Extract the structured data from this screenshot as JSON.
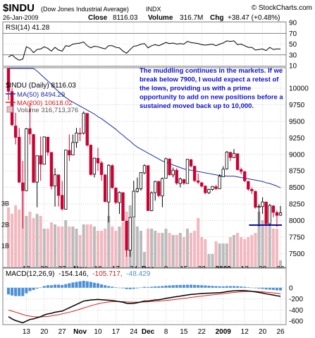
{
  "header": {
    "symbol": "$INDU",
    "name": "(Dow Jones Industrial Average)",
    "exchange": "INDX",
    "date": "26-Jan-2009",
    "close_label": "Close",
    "close": "8116.03",
    "volume_label": "Volume",
    "volume": "316.7M",
    "chg_label": "Chg",
    "chg": "+38.47 (+0.48%)",
    "watermark": "© StockCharts.com"
  },
  "colors": {
    "up": "#ffffff",
    "down": "#cc0033",
    "ma50": "#1f2fa0",
    "ma200": "#d62020",
    "volume": "#f2b8c0",
    "volume_up": "#bbbbbb",
    "macd_hist": "#4a90d9",
    "annotation_text": "#1111cc",
    "support_line": "#0a0aa8",
    "grid": "#b8b8b8"
  },
  "chart_data": [
    {
      "panel": "rsi",
      "type": "line",
      "label": "RSI(14) 41.28",
      "ylim": [
        10,
        90
      ],
      "y_ticks": [
        "90",
        "70",
        "50",
        "30",
        "10"
      ],
      "reference_lines": [
        70,
        30
      ],
      "dates": [
        "2008-10-06",
        "2008-10-07",
        "2008-10-08",
        "2008-10-09",
        "2008-10-10",
        "2008-10-13",
        "2008-10-14",
        "2008-10-15",
        "2008-10-16",
        "2008-10-17",
        "2008-10-20",
        "2008-10-21",
        "2008-10-22",
        "2008-10-23",
        "2008-10-24",
        "2008-10-27",
        "2008-10-28",
        "2008-10-29",
        "2008-10-30",
        "2008-10-31",
        "2008-11-03",
        "2008-11-04",
        "2008-11-05",
        "2008-11-06",
        "2008-11-07",
        "2008-11-10",
        "2008-11-11",
        "2008-11-12",
        "2008-11-13",
        "2008-11-14",
        "2008-11-17",
        "2008-11-18",
        "2008-11-19",
        "2008-11-20",
        "2008-11-21",
        "2008-11-24",
        "2008-11-25",
        "2008-11-26",
        "2008-11-28",
        "2008-12-01",
        "2008-12-02",
        "2008-12-03",
        "2008-12-04",
        "2008-12-05",
        "2008-12-08",
        "2008-12-09",
        "2008-12-10",
        "2008-12-11",
        "2008-12-12",
        "2008-12-15",
        "2008-12-16",
        "2008-12-17",
        "2008-12-18",
        "2008-12-19",
        "2008-12-22",
        "2008-12-23",
        "2008-12-24",
        "2008-12-26",
        "2008-12-29",
        "2008-12-30",
        "2008-12-31",
        "2009-01-02",
        "2009-01-05",
        "2009-01-06",
        "2009-01-07",
        "2009-01-08",
        "2009-01-09",
        "2009-01-12",
        "2009-01-13",
        "2009-01-14",
        "2009-01-15",
        "2009-01-16",
        "2009-01-20",
        "2009-01-21",
        "2009-01-22",
        "2009-01-23",
        "2009-01-26"
      ],
      "values": [
        26,
        30,
        24,
        20,
        22,
        45,
        42,
        34,
        40,
        41,
        45,
        42,
        37,
        44,
        39,
        37,
        47,
        46,
        50,
        51,
        52,
        54,
        47,
        43,
        46,
        45,
        43,
        41,
        47,
        47,
        44,
        43,
        37,
        33,
        40,
        46,
        47,
        50,
        51,
        43,
        47,
        49,
        47,
        50,
        53,
        51,
        52,
        50,
        51,
        50,
        55,
        53,
        52,
        51,
        49,
        48,
        49,
        50,
        47,
        50,
        52,
        56,
        55,
        56,
        49,
        50,
        47,
        44,
        44,
        39,
        40,
        41,
        38,
        44,
        40,
        41,
        41
      ]
    },
    {
      "panel": "price",
      "type": "candlestick",
      "title": "$INDU (Daily) 8116.03",
      "ylim": [
        7300,
        10300
      ],
      "y_ticks": [
        "10000",
        "9750",
        "9500",
        "9250",
        "9000",
        "8750",
        "8500",
        "8250",
        "8000",
        "7750",
        "7500"
      ],
      "dates": [
        "2008-10-06",
        "2008-10-07",
        "2008-10-08",
        "2008-10-09",
        "2008-10-10",
        "2008-10-13",
        "2008-10-14",
        "2008-10-15",
        "2008-10-16",
        "2008-10-17",
        "2008-10-20",
        "2008-10-21",
        "2008-10-22",
        "2008-10-23",
        "2008-10-24",
        "2008-10-27",
        "2008-10-28",
        "2008-10-29",
        "2008-10-30",
        "2008-10-31",
        "2008-11-03",
        "2008-11-04",
        "2008-11-05",
        "2008-11-06",
        "2008-11-07",
        "2008-11-10",
        "2008-11-11",
        "2008-11-12",
        "2008-11-13",
        "2008-11-14",
        "2008-11-17",
        "2008-11-18",
        "2008-11-19",
        "2008-11-20",
        "2008-11-21",
        "2008-11-24",
        "2008-11-25",
        "2008-11-26",
        "2008-11-28",
        "2008-12-01",
        "2008-12-02",
        "2008-12-03",
        "2008-12-04",
        "2008-12-05",
        "2008-12-08",
        "2008-12-09",
        "2008-12-10",
        "2008-12-11",
        "2008-12-12",
        "2008-12-15",
        "2008-12-16",
        "2008-12-17",
        "2008-12-18",
        "2008-12-19",
        "2008-12-22",
        "2008-12-23",
        "2008-12-24",
        "2008-12-26",
        "2008-12-29",
        "2008-12-30",
        "2008-12-31",
        "2009-01-02",
        "2009-01-05",
        "2009-01-06",
        "2009-01-07",
        "2009-01-08",
        "2009-01-09",
        "2009-01-12",
        "2009-01-13",
        "2009-01-14",
        "2009-01-15",
        "2009-01-16",
        "2009-01-20",
        "2009-01-21",
        "2009-01-22",
        "2009-01-23",
        "2009-01-26"
      ],
      "ohlc": [
        [
          10300,
          10350,
          9820,
          9955
        ],
        [
          9950,
          10000,
          9430,
          9447
        ],
        [
          9430,
          9630,
          9150,
          9258
        ],
        [
          9260,
          9400,
          8570,
          8579
        ],
        [
          8570,
          8900,
          7880,
          8451
        ],
        [
          8450,
          9400,
          8450,
          9387
        ],
        [
          9390,
          9790,
          9150,
          9310
        ],
        [
          9300,
          9310,
          8570,
          8577
        ],
        [
          8580,
          8980,
          8200,
          8979
        ],
        [
          8980,
          9270,
          8600,
          8852
        ],
        [
          8850,
          9270,
          8850,
          9265
        ],
        [
          9260,
          9265,
          8980,
          9033
        ],
        [
          9030,
          9030,
          8470,
          8519
        ],
        [
          8520,
          8790,
          8210,
          8691
        ],
        [
          8690,
          8690,
          8210,
          8378
        ],
        [
          8380,
          8600,
          8150,
          8175
        ],
        [
          8170,
          9070,
          8170,
          9065
        ],
        [
          9060,
          9300,
          8900,
          8990
        ],
        [
          8990,
          9300,
          8990,
          9180
        ],
        [
          9180,
          9400,
          9100,
          9325
        ],
        [
          9320,
          9400,
          9200,
          9319
        ],
        [
          9320,
          9650,
          9300,
          9625
        ],
        [
          9620,
          9620,
          9120,
          9139
        ],
        [
          9140,
          9150,
          8680,
          8695
        ],
        [
          8700,
          8950,
          8650,
          8943
        ],
        [
          8940,
          9100,
          8750,
          8870
        ],
        [
          8870,
          8900,
          8600,
          8694
        ],
        [
          8690,
          8700,
          8280,
          8283
        ],
        [
          8280,
          8850,
          7970,
          8835
        ],
        [
          8830,
          8850,
          8480,
          8497
        ],
        [
          8490,
          8500,
          8250,
          8273
        ],
        [
          8270,
          8440,
          8100,
          8424
        ],
        [
          8420,
          8430,
          7990,
          7997
        ],
        [
          7990,
          8000,
          7450,
          7552
        ],
        [
          7550,
          8050,
          7450,
          8046
        ],
        [
          8050,
          8600,
          8050,
          8443
        ],
        [
          8440,
          8650,
          8420,
          8480
        ],
        [
          8480,
          8730,
          8450,
          8726
        ],
        [
          8720,
          8850,
          8700,
          8829
        ],
        [
          8830,
          8830,
          8150,
          8149
        ],
        [
          8150,
          8440,
          8140,
          8419
        ],
        [
          8420,
          8600,
          8300,
          8591
        ],
        [
          8590,
          8600,
          8350,
          8376
        ],
        [
          8370,
          8650,
          8200,
          8635
        ],
        [
          8640,
          8950,
          8640,
          8934
        ],
        [
          8930,
          8940,
          8680,
          8691
        ],
        [
          8690,
          8800,
          8650,
          8761
        ],
        [
          8760,
          8790,
          8540,
          8565
        ],
        [
          8560,
          8650,
          8500,
          8629
        ],
        [
          8620,
          8630,
          8540,
          8564
        ],
        [
          8560,
          8930,
          8560,
          8925
        ],
        [
          8920,
          8930,
          8800,
          8824
        ],
        [
          8820,
          8830,
          8580,
          8604
        ],
        [
          8600,
          8710,
          8550,
          8579
        ],
        [
          8570,
          8580,
          8500,
          8519
        ],
        [
          8520,
          8530,
          8400,
          8419
        ],
        [
          8420,
          8480,
          8400,
          8468
        ],
        [
          8470,
          8520,
          8450,
          8515
        ],
        [
          8510,
          8540,
          8460,
          8483
        ],
        [
          8480,
          8700,
          8480,
          8668
        ],
        [
          8660,
          8820,
          8660,
          8776
        ],
        [
          8780,
          9050,
          8770,
          9035
        ],
        [
          9030,
          9040,
          8900,
          8953
        ],
        [
          8950,
          9080,
          8950,
          9016
        ],
        [
          9010,
          9010,
          8760,
          8769
        ],
        [
          8770,
          8800,
          8700,
          8742
        ],
        [
          8740,
          8740,
          8580,
          8600
        ],
        [
          8590,
          8600,
          8450,
          8474
        ],
        [
          8470,
          8500,
          8400,
          8448
        ],
        [
          8440,
          8450,
          8180,
          8200
        ],
        [
          8200,
          8250,
          7910,
          8212
        ],
        [
          8210,
          8350,
          8100,
          8281
        ],
        [
          8280,
          8280,
          7940,
          7949
        ],
        [
          7950,
          8250,
          7940,
          8228
        ],
        [
          8220,
          8230,
          8050,
          8123
        ],
        [
          8120,
          8150,
          7900,
          8077
        ],
        [
          8080,
          8220,
          8070,
          8116
        ]
      ],
      "ma50": [
        10700,
        10660,
        10610,
        10550,
        10480,
        10420,
        10370,
        10310,
        10260,
        10210,
        10160,
        10110,
        10060,
        10000,
        9950,
        9900,
        9860,
        9820,
        9790,
        9760,
        9730,
        9700,
        9670,
        9640,
        9610,
        9570,
        9540,
        9500,
        9460,
        9420,
        9380,
        9330,
        9290,
        9240,
        9200,
        9150,
        9110,
        9080,
        9050,
        9020,
        8990,
        8960,
        8930,
        8900,
        8880,
        8860,
        8840,
        8820,
        8800,
        8780,
        8770,
        8760,
        8750,
        8740,
        8730,
        8720,
        8710,
        8700,
        8690,
        8680,
        8680,
        8670,
        8670,
        8670,
        8660,
        8650,
        8640,
        8630,
        8620,
        8610,
        8600,
        8590,
        8570,
        8560,
        8540,
        8520,
        8494
      ],
      "ma200_label": "MA(200) 10618.02",
      "legend": [
        "MA(50) 8494.29",
        "MA(200) 10618.02",
        "Volume 316,713,376"
      ],
      "volume_axis_ticks": [
        "3B",
        "2B",
        "1B"
      ],
      "volume_ylim": [
        0,
        4
      ],
      "volume": [
        2.8,
        2.5,
        2.9,
        2.7,
        3.6,
        2.4,
        2.6,
        2.3,
        2.5,
        2.4,
        1.8,
        1.8,
        2.1,
        2.0,
        1.9,
        1.9,
        2.2,
        1.9,
        1.9,
        1.8,
        1.5,
        2.0,
        2.0,
        2.0,
        1.9,
        1.7,
        1.7,
        1.8,
        2.4,
        1.9,
        1.7,
        1.9,
        2.1,
        2.6,
        2.9,
        2.3,
        1.9,
        1.7,
        0.7,
        1.8,
        1.8,
        1.7,
        1.6,
        1.6,
        1.8,
        1.6,
        1.5,
        1.5,
        1.6,
        1.4,
        1.8,
        1.6,
        1.7,
        2.3,
        1.4,
        1.3,
        0.6,
        0.6,
        1.2,
        1.1,
        1.1,
        1.1,
        1.4,
        1.5,
        1.6,
        1.4,
        1.3,
        1.4,
        1.5,
        1.6,
        2.6,
        2.2,
        2.0,
        2.0,
        1.8,
        1.8,
        0.3
      ],
      "annotation": "The muddling continues in the markets.  If we break below 7900, I would expect a retest of the lows, providing us with a prime opportunity to add on new positions before a sustained moved back up to 10,000.",
      "support_level": 7930,
      "support_from": "2009-01-13",
      "support_to": "2009-01-26"
    },
    {
      "panel": "macd",
      "type": "line",
      "label_parts": [
        "MACD(12,26,9)",
        "-154.146,",
        "-105.717,",
        "-48.429"
      ],
      "ylim": [
        -650,
        200
      ],
      "y_ticks": [
        "0",
        "-200",
        "-400",
        "-600"
      ],
      "macd": [
        -520,
        -560,
        -590,
        -610,
        -630,
        -600,
        -570,
        -560,
        -540,
        -520,
        -490,
        -470,
        -460,
        -440,
        -430,
        -420,
        -390,
        -360,
        -330,
        -300,
        -270,
        -240,
        -230,
        -220,
        -215,
        -210,
        -215,
        -220,
        -225,
        -230,
        -240,
        -250,
        -260,
        -280,
        -285,
        -280,
        -270,
        -255,
        -240,
        -240,
        -230,
        -220,
        -215,
        -205,
        -190,
        -180,
        -170,
        -160,
        -150,
        -140,
        -130,
        -120,
        -115,
        -110,
        -105,
        -100,
        -98,
        -95,
        -92,
        -88,
        -82,
        -70,
        -62,
        -55,
        -52,
        -50,
        -52,
        -58,
        -65,
        -75,
        -85,
        -95,
        -110,
        -120,
        -132,
        -145,
        -154
      ],
      "signal": [
        -400,
        -420,
        -440,
        -460,
        -480,
        -500,
        -510,
        -520,
        -525,
        -525,
        -520,
        -515,
        -505,
        -495,
        -485,
        -470,
        -455,
        -440,
        -425,
        -405,
        -385,
        -365,
        -345,
        -325,
        -305,
        -290,
        -275,
        -265,
        -255,
        -250,
        -248,
        -248,
        -250,
        -255,
        -258,
        -260,
        -260,
        -258,
        -255,
        -252,
        -248,
        -244,
        -240,
        -235,
        -228,
        -222,
        -215,
        -208,
        -200,
        -192,
        -183,
        -174,
        -166,
        -158,
        -150,
        -142,
        -135,
        -128,
        -121,
        -114,
        -107,
        -99,
        -92,
        -85,
        -79,
        -73,
        -69,
        -67,
        -66,
        -67,
        -70,
        -74,
        -80,
        -86,
        -93,
        -99,
        -106
      ],
      "histogram": [
        -120,
        -140,
        -150,
        -150,
        -150,
        -100,
        -60,
        -40,
        -15,
        5,
        30,
        45,
        45,
        55,
        55,
        50,
        65,
        80,
        95,
        105,
        115,
        125,
        115,
        105,
        90,
        80,
        60,
        45,
        30,
        20,
        8,
        -2,
        -10,
        -25,
        -27,
        -20,
        -10,
        3,
        15,
        12,
        18,
        24,
        25,
        30,
        38,
        42,
        45,
        48,
        50,
        52,
        53,
        54,
        51,
        48,
        45,
        42,
        37,
        33,
        29,
        26,
        25,
        29,
        30,
        30,
        27,
        23,
        17,
        9,
        1,
        -8,
        -15,
        -21,
        -30,
        -34,
        -39,
        -46,
        -48
      ]
    }
  ],
  "x_axis": {
    "labels": [
      "13",
      "20",
      "27",
      "Nov",
      "10",
      "17",
      "24",
      "Dec",
      "8",
      "15",
      "22",
      "2009",
      "12",
      "20",
      "26"
    ]
  }
}
